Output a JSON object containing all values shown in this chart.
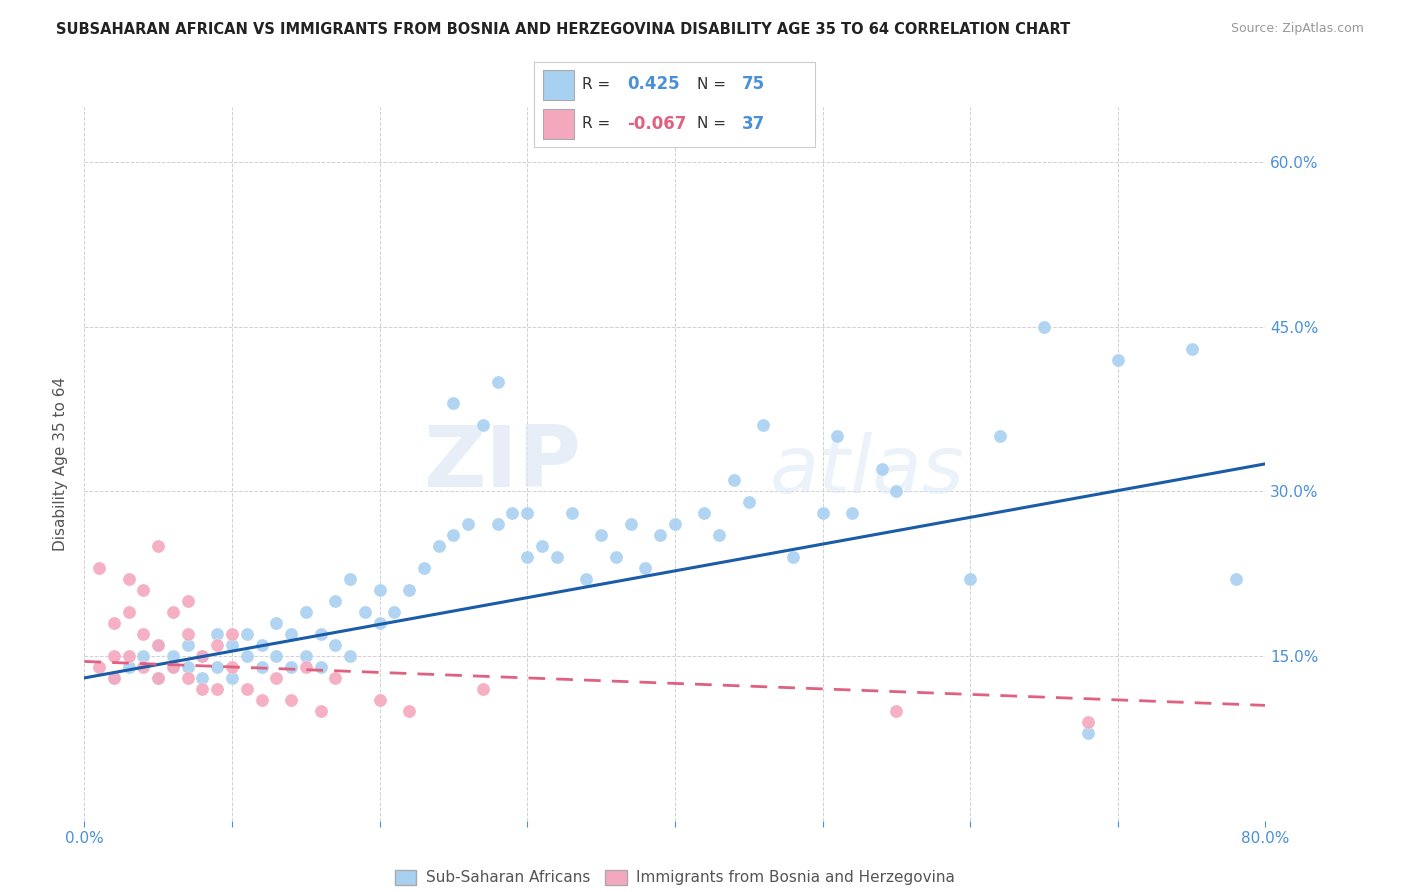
{
  "title": "SUBSAHARAN AFRICAN VS IMMIGRANTS FROM BOSNIA AND HERZEGOVINA DISABILITY AGE 35 TO 64 CORRELATION CHART",
  "source": "Source: ZipAtlas.com",
  "ylabel": "Disability Age 35 to 64",
  "x_min": 0.0,
  "x_max": 0.8,
  "y_min": 0.0,
  "y_max": 0.65,
  "x_ticks": [
    0.0,
    0.1,
    0.2,
    0.3,
    0.4,
    0.5,
    0.6,
    0.7,
    0.8
  ],
  "y_ticks": [
    0.0,
    0.15,
    0.3,
    0.45,
    0.6
  ],
  "legend_label_1": "Sub-Saharan Africans",
  "legend_label_2": "Immigrants from Bosnia and Herzegovina",
  "R1": 0.425,
  "N1": 75,
  "R2": -0.067,
  "N2": 37,
  "color_blue": "#a8d0f0",
  "color_pink": "#f4a8be",
  "color_line_blue": "#1a5ca8",
  "color_line_pink": "#e06080",
  "watermark_zip": "ZIP",
  "watermark_atlas": "atlas",
  "blue_scatter_x": [
    0.02,
    0.03,
    0.04,
    0.05,
    0.05,
    0.06,
    0.06,
    0.07,
    0.07,
    0.08,
    0.08,
    0.09,
    0.09,
    0.1,
    0.1,
    0.11,
    0.11,
    0.12,
    0.12,
    0.13,
    0.13,
    0.14,
    0.14,
    0.15,
    0.15,
    0.16,
    0.16,
    0.17,
    0.17,
    0.18,
    0.18,
    0.19,
    0.2,
    0.2,
    0.21,
    0.22,
    0.23,
    0.24,
    0.25,
    0.25,
    0.26,
    0.27,
    0.28,
    0.28,
    0.29,
    0.3,
    0.3,
    0.31,
    0.32,
    0.33,
    0.34,
    0.35,
    0.36,
    0.37,
    0.38,
    0.39,
    0.4,
    0.42,
    0.43,
    0.44,
    0.45,
    0.46,
    0.48,
    0.5,
    0.51,
    0.52,
    0.54,
    0.55,
    0.6,
    0.62,
    0.65,
    0.68,
    0.7,
    0.75,
    0.78
  ],
  "blue_scatter_y": [
    0.13,
    0.14,
    0.15,
    0.13,
    0.16,
    0.14,
    0.15,
    0.14,
    0.16,
    0.13,
    0.15,
    0.14,
    0.17,
    0.13,
    0.16,
    0.15,
    0.17,
    0.14,
    0.16,
    0.15,
    0.18,
    0.14,
    0.17,
    0.15,
    0.19,
    0.14,
    0.17,
    0.16,
    0.2,
    0.15,
    0.22,
    0.19,
    0.18,
    0.21,
    0.19,
    0.21,
    0.23,
    0.25,
    0.26,
    0.38,
    0.27,
    0.36,
    0.27,
    0.4,
    0.28,
    0.24,
    0.28,
    0.25,
    0.24,
    0.28,
    0.22,
    0.26,
    0.24,
    0.27,
    0.23,
    0.26,
    0.27,
    0.28,
    0.26,
    0.31,
    0.29,
    0.36,
    0.24,
    0.28,
    0.35,
    0.28,
    0.32,
    0.3,
    0.22,
    0.35,
    0.45,
    0.08,
    0.42,
    0.43,
    0.22
  ],
  "pink_scatter_x": [
    0.01,
    0.01,
    0.02,
    0.02,
    0.02,
    0.03,
    0.03,
    0.03,
    0.04,
    0.04,
    0.04,
    0.05,
    0.05,
    0.05,
    0.06,
    0.06,
    0.07,
    0.07,
    0.07,
    0.08,
    0.08,
    0.09,
    0.09,
    0.1,
    0.1,
    0.11,
    0.12,
    0.13,
    0.14,
    0.15,
    0.16,
    0.17,
    0.2,
    0.22,
    0.27,
    0.55,
    0.68
  ],
  "pink_scatter_y": [
    0.14,
    0.23,
    0.15,
    0.18,
    0.13,
    0.15,
    0.19,
    0.22,
    0.14,
    0.17,
    0.21,
    0.13,
    0.16,
    0.25,
    0.14,
    0.19,
    0.13,
    0.17,
    0.2,
    0.12,
    0.15,
    0.12,
    0.16,
    0.14,
    0.17,
    0.12,
    0.11,
    0.13,
    0.11,
    0.14,
    0.1,
    0.13,
    0.11,
    0.1,
    0.12,
    0.1,
    0.09
  ],
  "blue_line_x": [
    0.0,
    0.8
  ],
  "blue_line_y": [
    0.13,
    0.325
  ],
  "pink_line_x": [
    0.0,
    0.8
  ],
  "pink_line_y": [
    0.145,
    0.105
  ]
}
